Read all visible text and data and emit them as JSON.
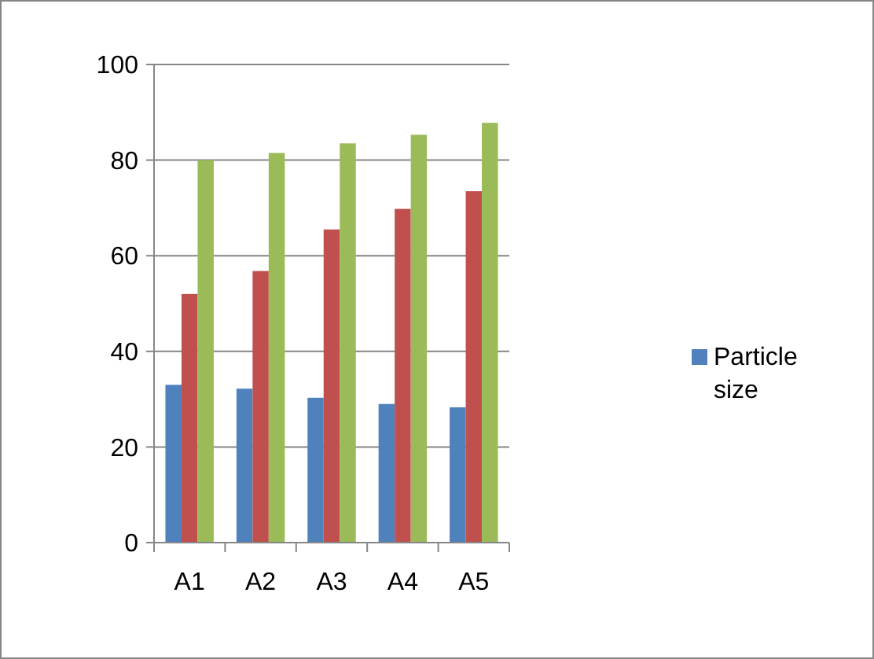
{
  "chart_data": {
    "type": "bar",
    "categories": [
      "A1",
      "A2",
      "A3",
      "A4",
      "A5"
    ],
    "series": [
      {
        "name": "Particle size",
        "color": "#4f81bd",
        "values": [
          33,
          32.2,
          30.3,
          29,
          28.3
        ]
      },
      {
        "color": "#c0504d",
        "values": [
          52,
          56.8,
          65.5,
          69.8,
          73.5
        ]
      },
      {
        "color": "#9bbb59",
        "values": [
          80,
          81.5,
          83.5,
          85.3,
          87.8
        ]
      }
    ],
    "ylim": [
      0,
      100
    ],
    "yticks": [
      0,
      20,
      40,
      60,
      80,
      100
    ],
    "grid": "y",
    "legend": "right"
  }
}
